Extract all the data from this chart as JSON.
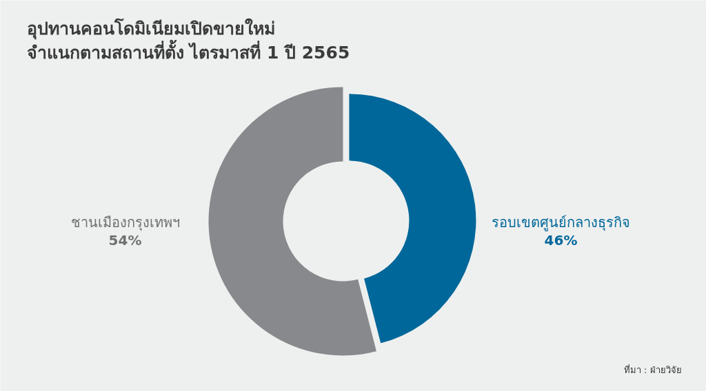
{
  "chart_data": {
    "type": "donut",
    "title": "อุปทานคอนโดมิเนียมเปิดขายใหม่\nจำแนกตามสถานที่ตั้ง ไตรมาสที่ 1 ปี 2565",
    "categories": [
      "รอบเขตศูนย์กลางธุรกิจ",
      "ชานเมืองกรุงเทพฯ"
    ],
    "values": [
      46,
      54
    ],
    "colors": [
      "#00679a",
      "#88898c"
    ],
    "value_labels": [
      "46%",
      "54%"
    ],
    "annotations": [
      "ที่มา : ฝ่ายวิจัย"
    ]
  }
}
